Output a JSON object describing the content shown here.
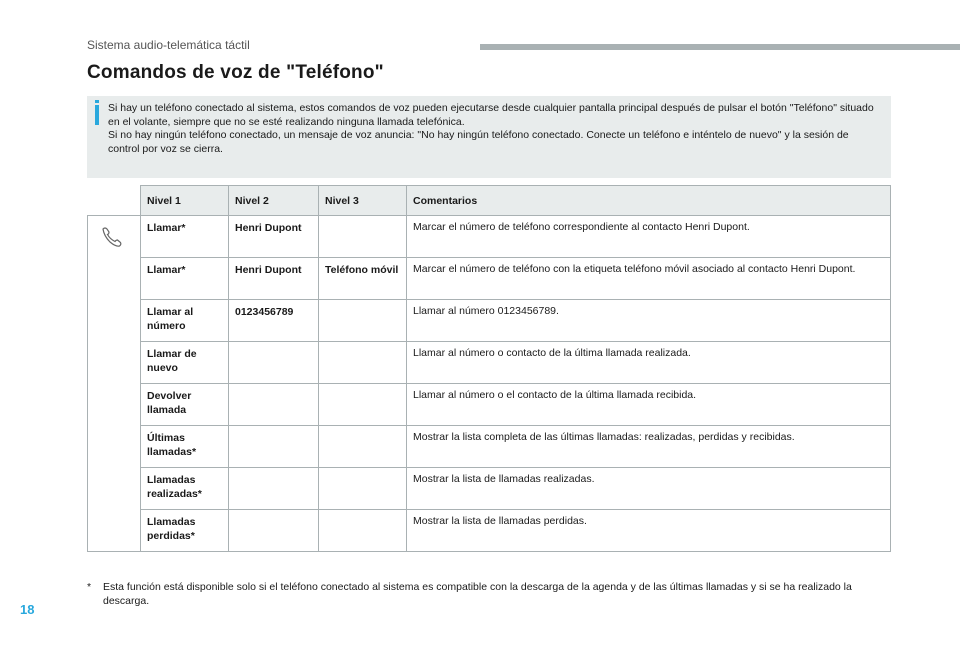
{
  "header": {
    "running_title": "Sistema audio-telemática táctil"
  },
  "title": "Comandos de voz de \"Teléfono\"",
  "info": {
    "text1": "Si hay un teléfono conectado al sistema, estos comandos de voz pueden ejecutarse desde cualquier pantalla principal después de pulsar el botón \"Teléfono\" situado en el volante, siempre que no se esté realizando ninguna llamada telefónica.",
    "text2": "Si no hay ningún teléfono conectado, un mensaje de voz anuncia: \"No hay ningún teléfono conectado. Conecte un teléfono e inténtelo de nuevo\" y la sesión de control por voz se cierra."
  },
  "table": {
    "headers": [
      "Nivel 1",
      "Nivel 2",
      "Nivel 3",
      "Comentarios"
    ],
    "icon": "phone-handset-icon",
    "rows": [
      {
        "n1": "Llamar*",
        "n2": "Henri Dupont",
        "n3": "",
        "c": "Marcar el número de teléfono correspondiente al contacto Henri Dupont."
      },
      {
        "n1": "Llamar*",
        "n2": "Henri Dupont",
        "n3": "Teléfono móvil",
        "c": "Marcar el número de teléfono con la etiqueta teléfono móvil asociado al contacto Henri Dupont."
      },
      {
        "n1": "Llamar al número",
        "n2": "0123456789",
        "n3": "",
        "c": "Llamar al número 0123456789."
      },
      {
        "n1": "Llamar de nuevo",
        "n2": "",
        "n3": "",
        "c": "Llamar al número o contacto de la última llamada realizada."
      },
      {
        "n1": "Devolver llamada",
        "n2": "",
        "n3": "",
        "c": "Llamar al número o el contacto de la última llamada recibida."
      },
      {
        "n1": "Últimas llamadas*",
        "n2": "",
        "n3": "",
        "c": "Mostrar la lista completa de las últimas llamadas: realizadas, perdidas y recibidas."
      },
      {
        "n1": "Llamadas realizadas*",
        "n2": "",
        "n3": "",
        "c": "Mostrar la lista de llamadas realizadas."
      },
      {
        "n1": "Llamadas perdidas*",
        "n2": "",
        "n3": "",
        "c": "Mostrar la lista de llamadas perdidas."
      }
    ]
  },
  "footnote": {
    "mark": "*",
    "text": "Esta función está disponible solo si el teléfono conectado al sistema es compatible con la descarga de la agenda y de las últimas llamadas y si se ha realizado la descarga."
  },
  "page_number": "18",
  "colors": {
    "accent": "#29a8dd",
    "panel": "#e8ecec",
    "rule": "#a9b1b3"
  }
}
